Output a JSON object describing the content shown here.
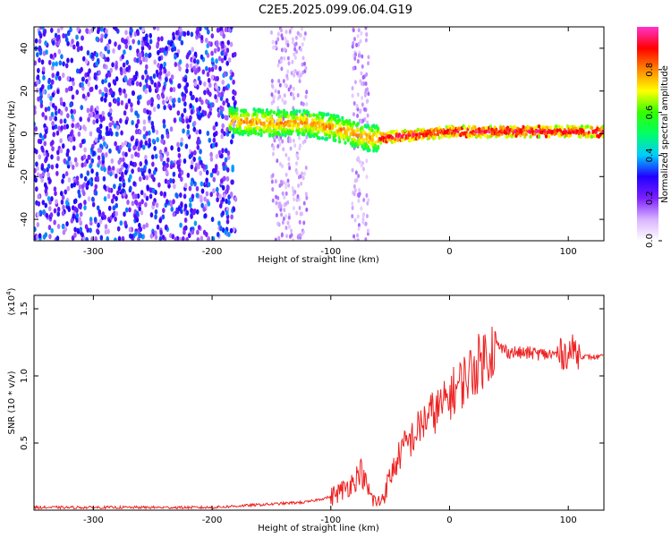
{
  "title": "C2E5.2025.099.06.04.G19",
  "chart_data": [
    {
      "type": "heatmap",
      "xlabel": "Height of straight line (km)",
      "ylabel": "Frequency (Hz)",
      "xlim": [
        -350,
        130
      ],
      "ylim": [
        -50,
        50
      ],
      "x_ticks": [
        -300,
        -200,
        -100,
        0,
        100
      ],
      "y_ticks": [
        -40,
        -20,
        0,
        20,
        40
      ],
      "colorbar": {
        "label": "Normalized spectral amplitude",
        "ticks": [
          "0.0",
          "0.2",
          "0.4",
          "0.6",
          "0.8"
        ],
        "range": [
          0,
          1
        ],
        "colormap": [
          "#ffffff",
          "#d9b3ff",
          "#7a1fff",
          "#2200ff",
          "#00ccff",
          "#00ff66",
          "#33ff00",
          "#ffff00",
          "#ff8800",
          "#ff0000",
          "#ff33cc"
        ]
      },
      "ridge": {
        "x": [
          -185,
          -150,
          -120,
          -100,
          -80,
          -70,
          -60,
          -40,
          -20,
          0,
          20,
          50,
          80,
          110,
          130
        ],
        "freq_hz": [
          6,
          5,
          5,
          3,
          0,
          -2,
          -2,
          -1,
          0,
          1,
          1,
          1,
          1,
          1,
          1
        ]
      }
    },
    {
      "type": "line",
      "xlabel": "Height of straight line (km)",
      "ylabel": "SNR (10 * v/v)",
      "y_multiplier": "(x10",
      "y_multiplier_exp": "4",
      "y_multiplier_close": ")",
      "xlim": [
        -350,
        130
      ],
      "ylim": [
        0,
        1.6
      ],
      "x_ticks": [
        -300,
        -200,
        -100,
        0,
        100
      ],
      "y_ticks": [
        "0.5",
        "1.0",
        "1.5"
      ],
      "series": [
        {
          "color": "#ee2222",
          "x": [
            -350,
            -300,
            -250,
            -200,
            -180,
            -160,
            -140,
            -120,
            -100,
            -90,
            -80,
            -75,
            -70,
            -65,
            -60,
            -55,
            -50,
            -45,
            -40,
            -35,
            -30,
            -25,
            -20,
            -15,
            -10,
            -5,
            0,
            5,
            10,
            15,
            20,
            25,
            30,
            35,
            40,
            45,
            50,
            60,
            70,
            80,
            90,
            100,
            105,
            110,
            115,
            120,
            130
          ],
          "y": [
            0.02,
            0.02,
            0.02,
            0.02,
            0.03,
            0.04,
            0.05,
            0.06,
            0.1,
            0.15,
            0.22,
            0.3,
            0.18,
            0.08,
            0.05,
            0.12,
            0.25,
            0.35,
            0.45,
            0.5,
            0.55,
            0.62,
            0.68,
            0.72,
            0.75,
            0.78,
            0.85,
            0.9,
            0.95,
            1.0,
            1.05,
            1.1,
            1.15,
            1.2,
            1.22,
            1.2,
            1.18,
            1.17,
            1.17,
            1.16,
            1.16,
            1.17,
            1.2,
            1.15,
            1.14,
            1.14,
            1.14
          ]
        }
      ]
    }
  ]
}
